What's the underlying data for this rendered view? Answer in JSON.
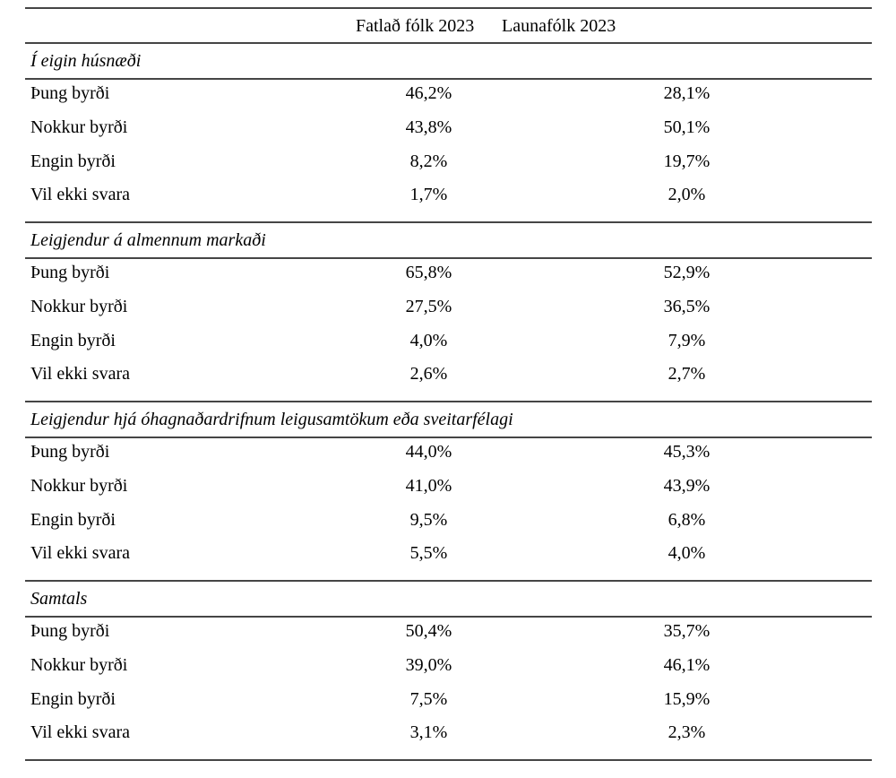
{
  "table": {
    "header": {
      "col1": "Fatlað fólk 2023",
      "col2": "Launafólk 2023"
    },
    "rule_color": "#454545",
    "sections": [
      {
        "title": "Í eigin húsnæði",
        "rows": [
          {
            "label": "Þung byrði",
            "fatlad": "46,2%",
            "launafolk": "28,1%"
          },
          {
            "label": "Nokkur byrði",
            "fatlad": "43,8%",
            "launafolk": "50,1%"
          },
          {
            "label": "Engin byrði",
            "fatlad": "8,2%",
            "launafolk": "19,7%"
          },
          {
            "label": "Vil ekki svara",
            "fatlad": "1,7%",
            "launafolk": "2,0%"
          }
        ]
      },
      {
        "title": "Leigjendur á almennum markaði",
        "rows": [
          {
            "label": "Þung byrði",
            "fatlad": "65,8%",
            "launafolk": "52,9%"
          },
          {
            "label": "Nokkur byrði",
            "fatlad": "27,5%",
            "launafolk": "36,5%"
          },
          {
            "label": "Engin byrði",
            "fatlad": "4,0%",
            "launafolk": "7,9%"
          },
          {
            "label": "Vil ekki svara",
            "fatlad": "2,6%",
            "launafolk": "2,7%"
          }
        ]
      },
      {
        "title": "Leigjendur hjá óhagnaðardrifnum leigusamtökum eða sveitarfélagi",
        "rows": [
          {
            "label": "Þung byrði",
            "fatlad": "44,0%",
            "launafolk": "45,3%"
          },
          {
            "label": "Nokkur byrði",
            "fatlad": "41,0%",
            "launafolk": "43,9%"
          },
          {
            "label": "Engin byrði",
            "fatlad": "9,5%",
            "launafolk": "6,8%"
          },
          {
            "label": "Vil ekki svara",
            "fatlad": "5,5%",
            "launafolk": "4,0%"
          }
        ]
      },
      {
        "title": "Samtals",
        "rows": [
          {
            "label": "Þung byrði",
            "fatlad": "50,4%",
            "launafolk": "35,7%"
          },
          {
            "label": "Nokkur byrði",
            "fatlad": "39,0%",
            "launafolk": "46,1%"
          },
          {
            "label": "Engin byrði",
            "fatlad": "7,5%",
            "launafolk": "15,9%"
          },
          {
            "label": "Vil ekki svara",
            "fatlad": "3,1%",
            "launafolk": "2,3%"
          }
        ]
      }
    ]
  }
}
